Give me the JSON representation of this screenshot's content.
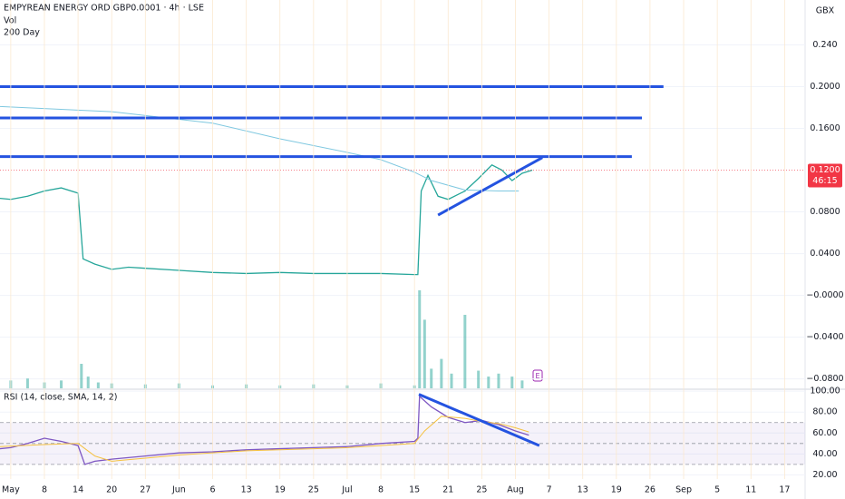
{
  "header": {
    "title": "EMPYREAN ENERGY ORD GBP0.0001 · 4h · LSE",
    "indicators": [
      "Vol",
      "200 Day"
    ],
    "currency": "GBX",
    "earnings_marker": "E"
  },
  "chart_data": [
    {
      "type": "line",
      "xlim": [
        -0.32,
        23.61
      ],
      "ylim": [
        -0.089,
        0.283
      ],
      "yticks": [
        {
          "value": 0.24,
          "label": "0.240"
        },
        {
          "value": 0.2,
          "label": "0.2000"
        },
        {
          "value": 0.16,
          "label": "0.1600"
        },
        {
          "value": 0.08,
          "label": "0.0800"
        },
        {
          "value": 0.04,
          "label": "0.0400"
        },
        {
          "value": 0,
          "label": "−0.0000"
        },
        {
          "value": -0.04,
          "label": "−0.0400"
        },
        {
          "value": -0.08,
          "label": "−0.0800"
        }
      ],
      "series": [
        {
          "color": "#26a69a",
          "x": [
            -0.32,
            0,
            0.5,
            1,
            1.5,
            2,
            2.15,
            2.5,
            3,
            3.5,
            4,
            5,
            6,
            7,
            8,
            9,
            10,
            11,
            12,
            12.1,
            12.2,
            12.4,
            12.7,
            13,
            13.5,
            13.9,
            14.3,
            14.6,
            14.9,
            15.2,
            15.5
          ],
          "values": [
            0.093,
            0.092,
            0.095,
            0.1,
            0.103,
            0.098,
            0.035,
            0.03,
            0.025,
            0.027,
            0.026,
            0.024,
            0.022,
            0.021,
            0.022,
            0.021,
            0.021,
            0.021,
            0.02,
            0.02,
            0.1,
            0.115,
            0.095,
            0.092,
            0.1,
            0.112,
            0.125,
            0.12,
            0.11,
            0.117,
            0.12
          ]
        },
        {
          "name": "200 Day",
          "color": "#7fc8e0",
          "x": [
            -0.32,
            3,
            6,
            8,
            10,
            11,
            12,
            12.5,
            13.5,
            14.5,
            15.1
          ],
          "values": [
            0.181,
            0.176,
            0.165,
            0.15,
            0.137,
            0.13,
            0.118,
            0.11,
            0.101,
            0.1,
            0.1
          ]
        }
      ],
      "volume": {
        "color": "#26a69a",
        "vlim": [
          0,
          100
        ],
        "x": [
          0,
          0.5,
          1,
          1.5,
          2.1,
          2.3,
          2.6,
          3,
          4,
          5,
          6,
          7,
          8,
          9,
          10,
          11,
          12,
          12.15,
          12.3,
          12.5,
          12.8,
          13.1,
          13.5,
          13.9,
          14.2,
          14.5,
          14.9,
          15.2
        ],
        "values": [
          8,
          10,
          6,
          8,
          25,
          12,
          6,
          5,
          4,
          5,
          3,
          4,
          3,
          4,
          3,
          5,
          3,
          100,
          70,
          20,
          30,
          15,
          75,
          18,
          12,
          15,
          12,
          8
        ]
      },
      "levels": [
        {
          "value": 0.2,
          "x_end": 19.4
        },
        {
          "value": 0.17,
          "x_end": 18.76
        },
        {
          "value": 0.133,
          "x_end": 18.46
        }
      ],
      "trendlines": [
        {
          "x": [
            12.7,
            15.8
          ],
          "values": [
            0.077,
            0.132
          ]
        }
      ],
      "last_price": {
        "value": 0.12,
        "label": "0.1200",
        "countdown": "46:15",
        "color": "#f23645"
      }
    },
    {
      "type": "line",
      "title": "RSI (14, close, SMA, 14, 2)",
      "xlim": [
        -0.32,
        23.61
      ],
      "ylim": [
        16,
        101
      ],
      "yticks": [
        {
          "value": 100,
          "label": "100.00"
        },
        {
          "value": 80,
          "label": "80.00"
        },
        {
          "value": 60,
          "label": "60.00"
        },
        {
          "value": 40,
          "label": "40.00"
        },
        {
          "value": 20,
          "label": "20.00"
        }
      ],
      "levels": [
        30,
        50,
        70
      ],
      "xticks": [
        {
          "value": 0,
          "label": "May"
        },
        {
          "value": 1,
          "label": "8"
        },
        {
          "value": 2,
          "label": "14"
        },
        {
          "value": 3,
          "label": "20"
        },
        {
          "value": 4,
          "label": "27"
        },
        {
          "value": 5,
          "label": "Jun"
        },
        {
          "value": 6,
          "label": "6"
        },
        {
          "value": 7,
          "label": "13"
        },
        {
          "value": 8,
          "label": "19"
        },
        {
          "value": 9,
          "label": "25"
        },
        {
          "value": 10,
          "label": "Jul"
        },
        {
          "value": 11,
          "label": "8"
        },
        {
          "value": 12,
          "label": "15"
        },
        {
          "value": 13,
          "label": "21"
        },
        {
          "value": 14,
          "label": "25"
        },
        {
          "value": 15,
          "label": "Aug"
        },
        {
          "value": 16,
          "label": "7"
        },
        {
          "value": 17,
          "label": "13"
        },
        {
          "value": 18,
          "label": "19"
        },
        {
          "value": 19,
          "label": "26"
        },
        {
          "value": 20,
          "label": "Sep"
        },
        {
          "value": 21,
          "label": "5"
        },
        {
          "value": 22,
          "label": "11"
        },
        {
          "value": 23,
          "label": "17"
        }
      ],
      "series": [
        {
          "color": "#7e57c2",
          "x": [
            -0.32,
            0,
            0.5,
            1,
            1.5,
            2,
            2.2,
            2.5,
            3,
            4,
            5,
            6,
            7,
            8,
            9,
            10,
            11,
            12,
            12.1,
            12.15,
            12.5,
            13,
            13.5,
            14,
            14.5,
            15,
            15.4
          ],
          "values": [
            45,
            46,
            50,
            55,
            52,
            48,
            30,
            33,
            35,
            38,
            41,
            42,
            44,
            45,
            46,
            47,
            50,
            52,
            55,
            95,
            85,
            75,
            70,
            72,
            68,
            62,
            58
          ]
        },
        {
          "color": "#f5c242",
          "x": [
            -0.32,
            1,
            2,
            2.5,
            3,
            4,
            5,
            6,
            7,
            8,
            9,
            10,
            11,
            12,
            12.3,
            12.8,
            13.5,
            14,
            14.5,
            15,
            15.4
          ],
          "values": [
            47,
            49,
            50,
            38,
            33,
            36,
            39,
            41,
            43,
            44,
            45,
            46,
            48,
            50,
            62,
            76,
            74,
            71,
            69,
            65,
            61
          ]
        }
      ],
      "trendlines": [
        {
          "x": [
            12.13,
            15.71
          ],
          "values": [
            97,
            48
          ]
        }
      ]
    }
  ]
}
